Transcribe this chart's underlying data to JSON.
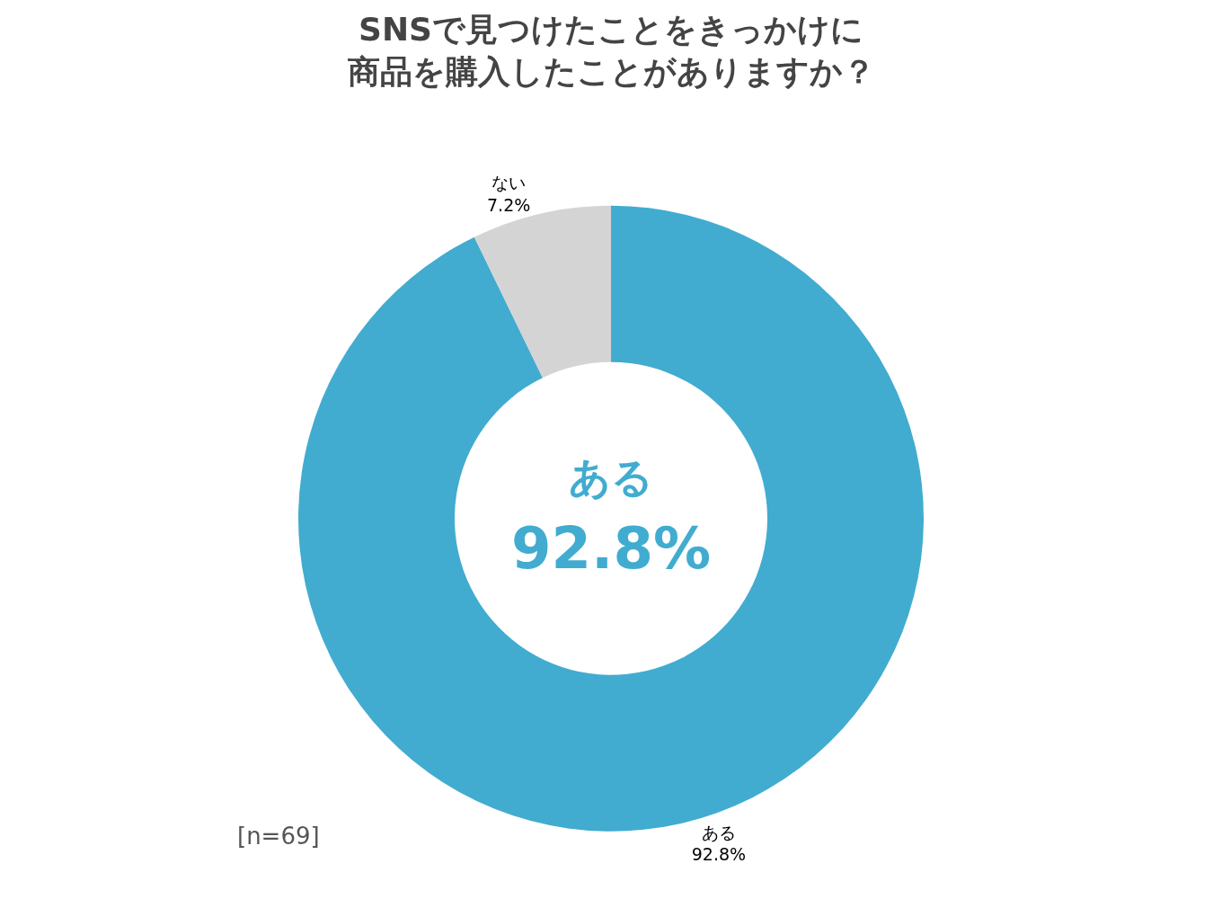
{
  "chart_data": {
    "type": "donut",
    "title": "SNSで見つけたことをきっかけに商品を購入したことがありますか？",
    "categories": [
      "ある",
      "ない"
    ],
    "values": [
      92.8,
      7.2
    ],
    "value_labels": [
      "92.8%",
      "7.2%"
    ],
    "colors": [
      "#41acd0",
      "#d4d4d4"
    ],
    "annotations": [
      "ある",
      "92.8%",
      "[n=69]"
    ],
    "legend": false
  }
}
